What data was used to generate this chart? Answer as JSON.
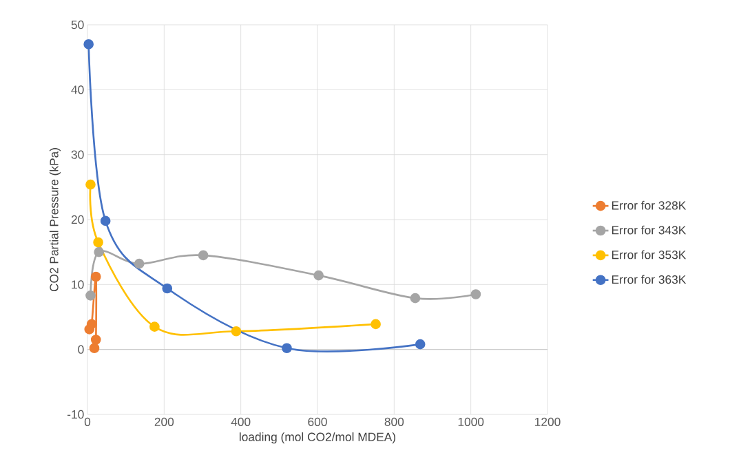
{
  "chart_data": {
    "type": "line",
    "xlabel": "loading (mol CO2/mol MDEA)",
    "ylabel": "CO2 Partial Pressure (kPa)",
    "xlim": [
      0,
      1200
    ],
    "xticks": [
      0,
      200,
      400,
      600,
      800,
      1000,
      1200
    ],
    "ylim": [
      -10,
      50
    ],
    "yticks": [
      -10,
      0,
      10,
      20,
      30,
      40,
      50
    ],
    "grid": true,
    "legend": "right",
    "marker": "circle",
    "line_style": "solid",
    "series": [
      {
        "name": "Error for 328K",
        "color": "#ed7d31",
        "x": [
          5,
          11,
          22,
          22,
          18
        ],
        "values": [
          3.1,
          3.9,
          11.2,
          1.5,
          0.2
        ]
      },
      {
        "name": "Error for 343K",
        "color": "#a5a5a5",
        "x": [
          8,
          30,
          135,
          302,
          603,
          855,
          1013
        ],
        "values": [
          8.3,
          15.0,
          13.2,
          14.5,
          11.4,
          7.9,
          8.5
        ]
      },
      {
        "name": "Error for 353K",
        "color": "#ffc000",
        "x": [
          8,
          28,
          175,
          388,
          752
        ],
        "values": [
          25.4,
          16.5,
          3.5,
          2.8,
          3.9
        ]
      },
      {
        "name": "Error for 363K",
        "color": "#4472c4",
        "x": [
          3,
          47,
          208,
          520,
          868
        ],
        "values": [
          47,
          19.8,
          9.4,
          0.2,
          0.8
        ]
      }
    ]
  }
}
